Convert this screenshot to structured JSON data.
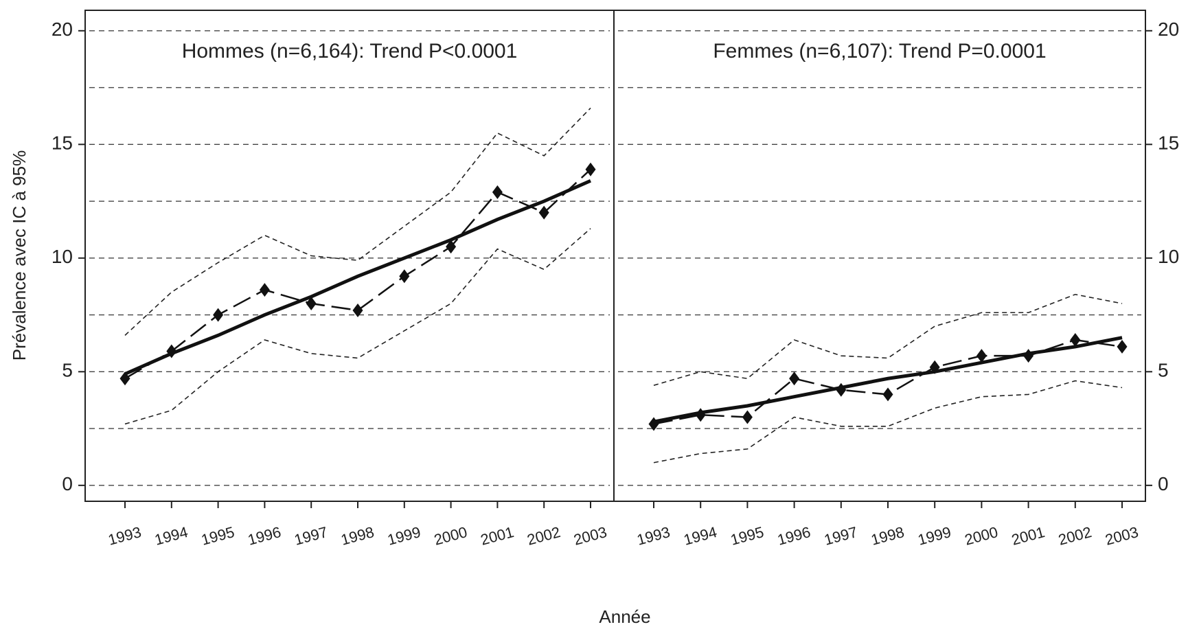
{
  "chart_data": [
    {
      "type": "line",
      "title": "Hommes (n=6,164): Trend P<0.0001",
      "ylabel": "Prévalence avec IC à 95%",
      "xlabel": "Année",
      "yaxis_side": "left",
      "categories": [
        "1993",
        "1994",
        "1995",
        "1996",
        "1997",
        "1998",
        "1999",
        "2000",
        "2001",
        "2002",
        "2003"
      ],
      "ylim": [
        -0.7,
        20.9
      ],
      "yticks": [
        0,
        5,
        10,
        15,
        20
      ],
      "minor_grid": [
        2.5,
        7.5,
        12.5,
        17.5
      ],
      "grid": true,
      "series": [
        {
          "style": "observed",
          "color": "#111111",
          "values": [
            4.7,
            5.9,
            7.5,
            8.6,
            8.0,
            7.7,
            9.2,
            10.5,
            12.9,
            12.0,
            13.9
          ]
        },
        {
          "style": "trend",
          "color": "#111111",
          "values": [
            4.9,
            5.8,
            6.6,
            7.5,
            8.3,
            9.2,
            10.0,
            10.8,
            11.7,
            12.5,
            13.4
          ]
        },
        {
          "style": "ci",
          "color": "#222222",
          "values": [
            2.7,
            3.3,
            5.0,
            6.4,
            5.8,
            5.6,
            6.8,
            8.0,
            10.4,
            9.5,
            11.3
          ]
        },
        {
          "style": "ci",
          "color": "#222222",
          "values": [
            6.6,
            8.5,
            9.8,
            11.0,
            10.1,
            9.9,
            11.4,
            12.9,
            15.5,
            14.5,
            16.6
          ]
        }
      ]
    },
    {
      "type": "line",
      "title": "Femmes (n=6,107): Trend P=0.0001",
      "yaxis_side": "right",
      "categories": [
        "1993",
        "1994",
        "1995",
        "1996",
        "1997",
        "1998",
        "1999",
        "2000",
        "2001",
        "2002",
        "2003"
      ],
      "ylim": [
        -0.7,
        20.9
      ],
      "yticks": [
        0,
        5,
        10,
        15,
        20
      ],
      "minor_grid": [
        2.5,
        7.5,
        12.5,
        17.5
      ],
      "grid": true,
      "series": [
        {
          "style": "observed",
          "color": "#111111",
          "values": [
            2.7,
            3.1,
            3.0,
            4.7,
            4.2,
            4.0,
            5.2,
            5.7,
            5.7,
            6.4,
            6.1
          ]
        },
        {
          "style": "trend",
          "color": "#111111",
          "values": [
            2.8,
            3.2,
            3.5,
            3.9,
            4.3,
            4.7,
            5.0,
            5.4,
            5.8,
            6.1,
            6.5
          ]
        },
        {
          "style": "ci",
          "color": "#222222",
          "values": [
            1.0,
            1.4,
            1.6,
            3.0,
            2.6,
            2.6,
            3.4,
            3.9,
            4.0,
            4.6,
            4.3
          ]
        },
        {
          "style": "ci",
          "color": "#222222",
          "values": [
            4.4,
            5.0,
            4.7,
            6.4,
            5.7,
            5.6,
            7.0,
            7.6,
            7.6,
            8.4,
            8.0
          ]
        }
      ]
    }
  ]
}
